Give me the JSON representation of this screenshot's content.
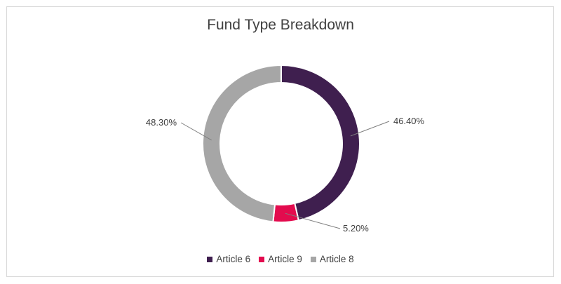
{
  "chart_data": {
    "type": "pie",
    "title": "Fund Type Breakdown",
    "categories": [
      "Article 6",
      "Article 9",
      "Article 8"
    ],
    "values": [
      46.4,
      5.2,
      48.3
    ],
    "labels": [
      "46.40%",
      "5.20%",
      "48.30%"
    ],
    "colors": [
      "#3f1f4f",
      "#e30b4e",
      "#a6a6a6"
    ],
    "donut": true,
    "legend_position": "bottom"
  }
}
